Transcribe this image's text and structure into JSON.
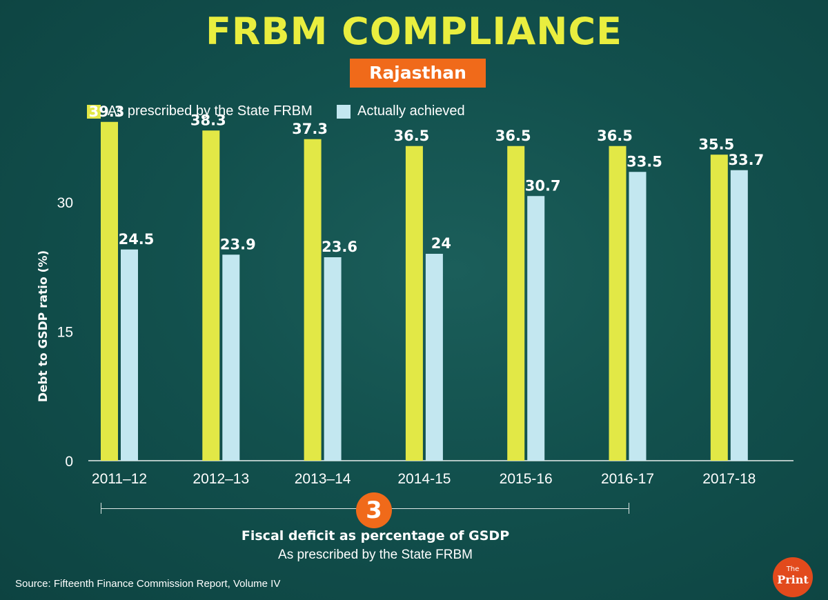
{
  "header": {
    "title": "FRBM COMPLIANCE",
    "state": "Rajasthan"
  },
  "legend": {
    "prescribed": "As prescribed by the State FRBM",
    "achieved": "Actually achieved"
  },
  "colors": {
    "background": "#0f4a48",
    "title": "#e9ee3f",
    "prescribed": "#e2e846",
    "achieved": "#c3e7f0",
    "accent": "#f06a1a",
    "text": "#ffffff"
  },
  "chart_data": {
    "type": "bar",
    "title": "FRBM COMPLIANCE",
    "subtitle": "Rajasthan",
    "xlabel": "",
    "ylabel": "Debt to GSDP ratio (%)",
    "ylim": [
      0,
      40
    ],
    "yticks": [
      0,
      15,
      30
    ],
    "categories": [
      "2011–12",
      "2012–13",
      "2013–14",
      "2014-15",
      "2015-16",
      "2016-17",
      "2017-18"
    ],
    "series": [
      {
        "name": "As prescribed by the State FRBM",
        "values": [
          39.3,
          38.3,
          37.3,
          36.5,
          36.5,
          36.5,
          35.5
        ],
        "labels": [
          "39.3",
          "38.3",
          "37.3",
          "36.5",
          "36.5",
          "36.5",
          "35.5"
        ]
      },
      {
        "name": "Actually achieved",
        "values": [
          24.5,
          23.9,
          23.6,
          24,
          30.7,
          33.5,
          33.7
        ],
        "labels": [
          "24.5",
          "23.9",
          "23.6",
          "24",
          "30.7",
          "33.5",
          "33.7"
        ]
      }
    ],
    "legend_position": "top-left",
    "grid": false
  },
  "footer": {
    "badge_number": "3",
    "note_title": "Fiscal deficit as percentage of GSDP",
    "note_subtitle": "As prescribed by the State FRBM",
    "source": "Source: Fifteenth Finance Commission Report, Volume IV"
  },
  "logo": {
    "small": "The",
    "big": "Print"
  }
}
